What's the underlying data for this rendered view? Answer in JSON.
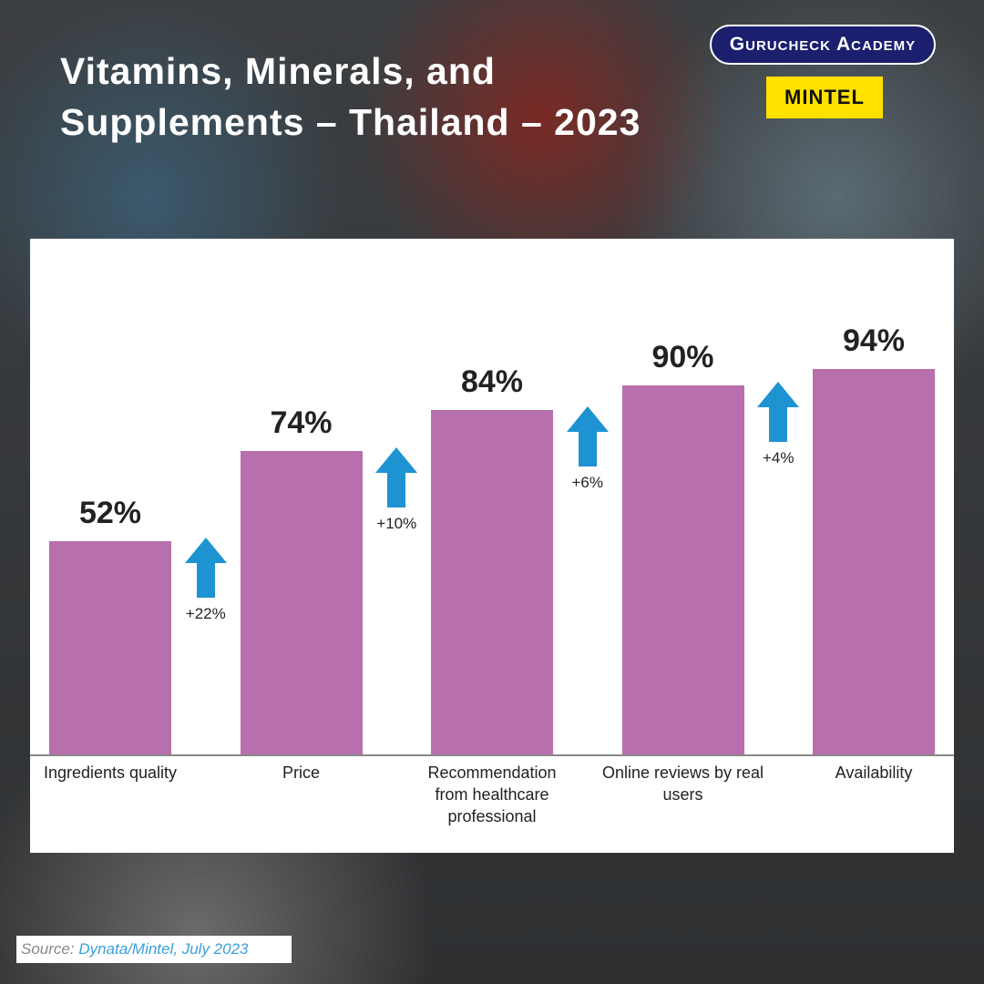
{
  "chart_data": {
    "type": "bar",
    "title": "Vitamins, Minerals, and Supplements – Thailand – 2023",
    "brand": "Gurucheck Academy",
    "partner": "MINTEL",
    "categories": [
      "Ingredients quality",
      "Price",
      "Recommendation from healthcare professional",
      "Online reviews by real users",
      "Availability"
    ],
    "values": [
      52,
      74,
      84,
      90,
      94
    ],
    "value_labels": [
      "52%",
      "74%",
      "84%",
      "90%",
      "94%"
    ],
    "color": "#b86fad",
    "annotations": [
      "+22%",
      "+10%",
      "+6%",
      "+4%"
    ],
    "annotation_color": "#1e93d2",
    "source_label": "Source:",
    "source": "Dynata/Mintel, July 2023"
  }
}
